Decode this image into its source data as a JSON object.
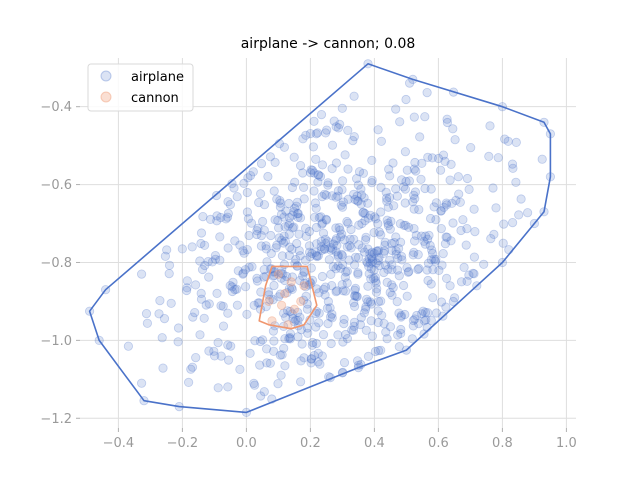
{
  "chart_data": {
    "type": "scatter",
    "title": "airplane -> cannon; 0.08",
    "xlabel": "",
    "ylabel": "",
    "xlim": [
      -0.52,
      1.03
    ],
    "ylim": [
      -1.225,
      -0.275
    ],
    "xticks": [
      -0.4,
      -0.2,
      0.0,
      0.2,
      0.4,
      0.6,
      0.8,
      1.0
    ],
    "xtick_labels": [
      "−0.4",
      "−0.2",
      "0.0",
      "0.2",
      "0.4",
      "0.6",
      "0.8",
      "1.0"
    ],
    "yticks": [
      -0.4,
      -0.6,
      -0.8,
      -1.0,
      -1.2
    ],
    "ytick_labels": [
      "−0.4",
      "−0.6",
      "−0.8",
      "−1.0",
      "−1.2"
    ],
    "grid": true,
    "legend_position": "top-left",
    "series": [
      {
        "name": "airplane",
        "color": "#4a72c9",
        "marker_alpha": 0.2,
        "n_points": 800,
        "center": [
          0.3,
          -0.8
        ],
        "spread": [
          0.28,
          0.17
        ],
        "hull": [
          [
            -0.49,
            -0.925
          ],
          [
            -0.44,
            -0.87
          ],
          [
            0.38,
            -0.29
          ],
          [
            0.52,
            -0.33
          ],
          [
            0.8,
            -0.4
          ],
          [
            0.93,
            -0.44
          ],
          [
            0.95,
            -0.47
          ],
          [
            0.95,
            -0.58
          ],
          [
            0.93,
            -0.67
          ],
          [
            0.9,
            -0.7
          ],
          [
            0.8,
            -0.8
          ],
          [
            0.72,
            -0.86
          ],
          [
            0.5,
            -1.025
          ],
          [
            0.35,
            -1.07
          ],
          [
            0.0,
            -1.185
          ],
          [
            -0.21,
            -1.17
          ],
          [
            -0.32,
            -1.155
          ],
          [
            -0.46,
            -1.0
          ]
        ]
      },
      {
        "name": "cannon",
        "color": "#f0966e",
        "marker_alpha": 0.3,
        "points": [
          [
            0.07,
            -0.9
          ],
          [
            0.1,
            -0.83
          ],
          [
            0.12,
            -0.88
          ],
          [
            0.15,
            -0.92
          ],
          [
            0.18,
            -0.86
          ],
          [
            0.08,
            -0.95
          ],
          [
            0.13,
            -0.96
          ],
          [
            0.17,
            -0.9
          ],
          [
            0.11,
            -0.91
          ],
          [
            0.14,
            -0.85
          ]
        ],
        "hull": [
          [
            0.08,
            -0.81
          ],
          [
            0.19,
            -0.81
          ],
          [
            0.22,
            -0.91
          ],
          [
            0.18,
            -0.96
          ],
          [
            0.14,
            -0.97
          ],
          [
            0.07,
            -0.96
          ],
          [
            0.04,
            -0.95
          ],
          [
            0.06,
            -0.86
          ]
        ]
      }
    ]
  }
}
